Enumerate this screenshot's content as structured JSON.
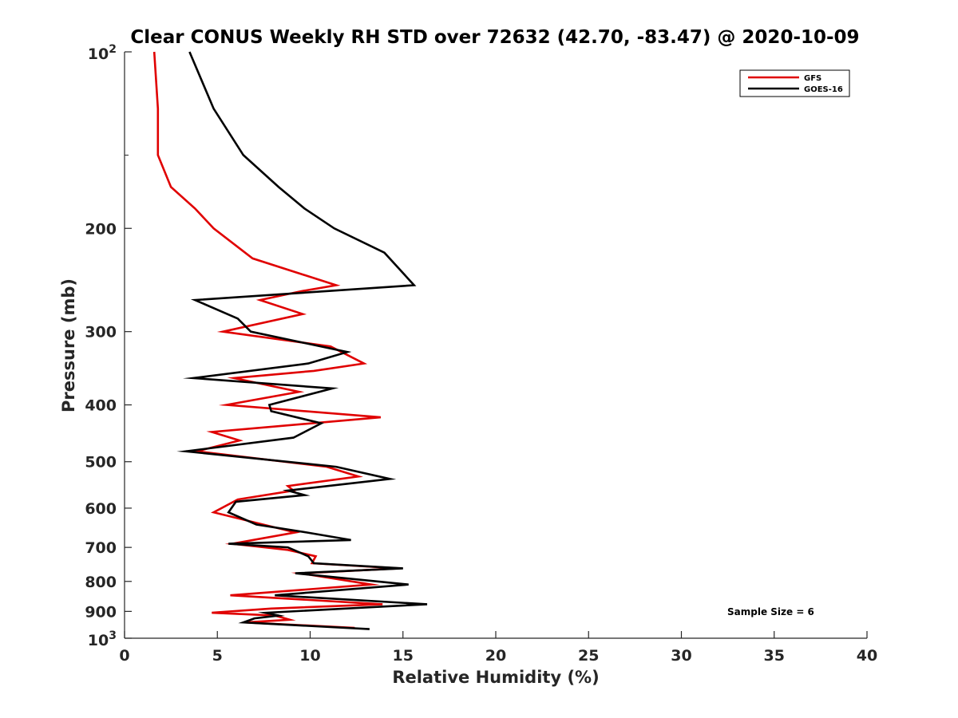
{
  "chart_data": {
    "type": "line",
    "title": "Clear CONUS Weekly RH STD over 72632 (42.70, -83.47) @ 2020-10-09",
    "xlabel": "Relative Humidity (%)",
    "ylabel": "Pressure (mb)",
    "xlim": [
      0,
      40
    ],
    "ylim": [
      100,
      1000
    ],
    "yscale": "log",
    "y_reversed": true,
    "x_ticks": [
      "0",
      "5",
      "10",
      "15",
      "20",
      "25",
      "30",
      "35",
      "40"
    ],
    "y_ticks": [
      {
        "value": 100,
        "label": "10",
        "sup": "2"
      },
      {
        "value": 200,
        "label": "200"
      },
      {
        "value": 300,
        "label": "300"
      },
      {
        "value": 400,
        "label": "400"
      },
      {
        "value": 500,
        "label": "500"
      },
      {
        "value": 600,
        "label": "600"
      },
      {
        "value": 700,
        "label": "700"
      },
      {
        "value": 800,
        "label": "800"
      },
      {
        "value": 900,
        "label": "900"
      },
      {
        "value": 1000,
        "label": "10",
        "sup": "3"
      }
    ],
    "legend_position": "top-right",
    "grid": false,
    "annotation": "Sample Size = 6",
    "series": [
      {
        "name": "GFS",
        "color": "#e00000",
        "points": [
          [
            1.6,
            100
          ],
          [
            1.8,
            125
          ],
          [
            1.8,
            150
          ],
          [
            2.5,
            170
          ],
          [
            3.8,
            185
          ],
          [
            4.8,
            200
          ],
          [
            6.9,
            225
          ],
          [
            11.4,
            250
          ],
          [
            9.5,
            256
          ],
          [
            7.3,
            265
          ],
          [
            9.6,
            280
          ],
          [
            5.3,
            300
          ],
          [
            11.1,
            318
          ],
          [
            12.9,
            340
          ],
          [
            10.2,
            350
          ],
          [
            5.9,
            360
          ],
          [
            9.4,
            380
          ],
          [
            5.5,
            400
          ],
          [
            13.8,
            420
          ],
          [
            4.7,
            445
          ],
          [
            6.2,
            460
          ],
          [
            3.9,
            480
          ],
          [
            10.9,
            510
          ],
          [
            12.6,
            530
          ],
          [
            8.8,
            550
          ],
          [
            9.1,
            560
          ],
          [
            6.1,
            580
          ],
          [
            4.8,
            610
          ],
          [
            9.2,
            660
          ],
          [
            5.8,
            690
          ],
          [
            8.8,
            707
          ],
          [
            10.3,
            725
          ],
          [
            10.1,
            745
          ],
          [
            14.8,
            760
          ],
          [
            9.5,
            775
          ],
          [
            13.3,
            810
          ],
          [
            5.7,
            845
          ],
          [
            13.9,
            875
          ],
          [
            7.9,
            890
          ],
          [
            4.7,
            905
          ],
          [
            8.1,
            915
          ],
          [
            8.9,
            930
          ],
          [
            6.5,
            940
          ],
          [
            12.4,
            960
          ]
        ]
      },
      {
        "name": "GOES-16",
        "color": "#000000",
        "points": [
          [
            3.5,
            100
          ],
          [
            4.8,
            125
          ],
          [
            6.4,
            150
          ],
          [
            8.3,
            170
          ],
          [
            9.7,
            185
          ],
          [
            11.3,
            200
          ],
          [
            14.0,
            220
          ],
          [
            15.6,
            250
          ],
          [
            3.8,
            265
          ],
          [
            6.1,
            285
          ],
          [
            6.8,
            300
          ],
          [
            12.0,
            325
          ],
          [
            9.9,
            340
          ],
          [
            3.7,
            360
          ],
          [
            11.2,
            375
          ],
          [
            7.8,
            400
          ],
          [
            7.9,
            410
          ],
          [
            10.6,
            430
          ],
          [
            9.1,
            455
          ],
          [
            3.3,
            480
          ],
          [
            11.4,
            510
          ],
          [
            14.3,
            535
          ],
          [
            8.8,
            560
          ],
          [
            9.7,
            570
          ],
          [
            6.0,
            585
          ],
          [
            5.6,
            610
          ],
          [
            7.1,
            640
          ],
          [
            9.8,
            660
          ],
          [
            12.2,
            680
          ],
          [
            5.6,
            690
          ],
          [
            8.8,
            700
          ],
          [
            9.9,
            725
          ],
          [
            10.2,
            745
          ],
          [
            15.0,
            760
          ],
          [
            9.2,
            775
          ],
          [
            15.3,
            810
          ],
          [
            8.1,
            845
          ],
          [
            16.3,
            875
          ],
          [
            7.6,
            905
          ],
          [
            8.3,
            915
          ],
          [
            7.0,
            925
          ],
          [
            6.4,
            940
          ],
          [
            13.2,
            965
          ]
        ]
      }
    ]
  }
}
